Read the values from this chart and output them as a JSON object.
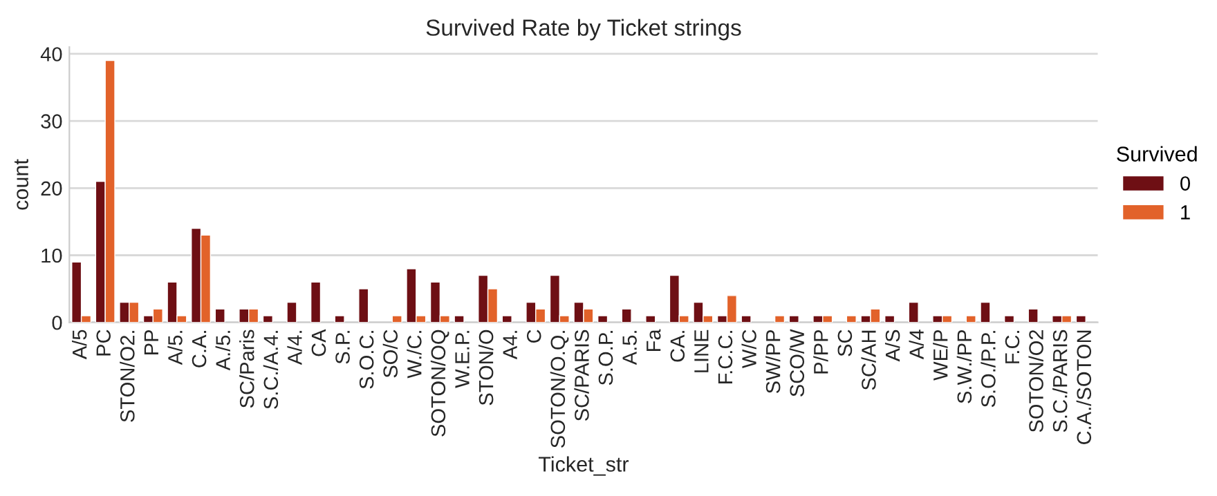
{
  "chart_data": {
    "type": "bar",
    "title": "Survived Rate by Ticket strings",
    "xlabel": "Ticket_str",
    "ylabel": "count",
    "legend_title": "Survived",
    "categories": [
      "A/5",
      "PC",
      "STON/O2.",
      "PP",
      "A/5.",
      "C.A.",
      "A./5.",
      "SC/Paris",
      "S.C./A.4.",
      "A/4.",
      "CA",
      "S.P.",
      "S.O.C.",
      "SO/C",
      "W./C.",
      "SOTON/OQ",
      "W.E.P.",
      "STON/O",
      "A4.",
      "C",
      "SOTON/O.Q.",
      "SC/PARIS",
      "S.O.P.",
      "A.5.",
      "Fa",
      "CA.",
      "LINE",
      "F.C.C.",
      "W/C",
      "SW/PP",
      "SCO/W",
      "P/PP",
      "SC",
      "SC/AH",
      "A/S",
      "A/4",
      "WE/P",
      "S.W./PP",
      "S.O./P.P.",
      "F.C.",
      "SOTON/O2",
      "S.C./PARIS",
      "C.A./SOTON"
    ],
    "series": [
      {
        "name": "0",
        "color": "#6e0f14",
        "values": [
          9,
          21,
          3,
          1,
          6,
          14,
          2,
          2,
          1,
          3,
          6,
          1,
          5,
          null,
          8,
          6,
          1,
          7,
          1,
          3,
          7,
          3,
          1,
          2,
          1,
          7,
          3,
          1,
          1,
          null,
          1,
          1,
          null,
          1,
          1,
          3,
          1,
          null,
          3,
          1,
          2,
          1,
          1
        ]
      },
      {
        "name": "1",
        "color": "#e2622a",
        "values": [
          1,
          39,
          3,
          2,
          1,
          13,
          null,
          2,
          null,
          null,
          null,
          null,
          null,
          1,
          1,
          1,
          null,
          5,
          null,
          2,
          1,
          2,
          null,
          null,
          null,
          1,
          1,
          4,
          null,
          1,
          null,
          1,
          1,
          2,
          null,
          null,
          1,
          1,
          null,
          null,
          null,
          1,
          null
        ]
      }
    ],
    "ylim": [
      0,
      41
    ],
    "yticks": [
      0,
      10,
      20,
      30,
      40
    ],
    "grid": "y",
    "legend": "right"
  }
}
